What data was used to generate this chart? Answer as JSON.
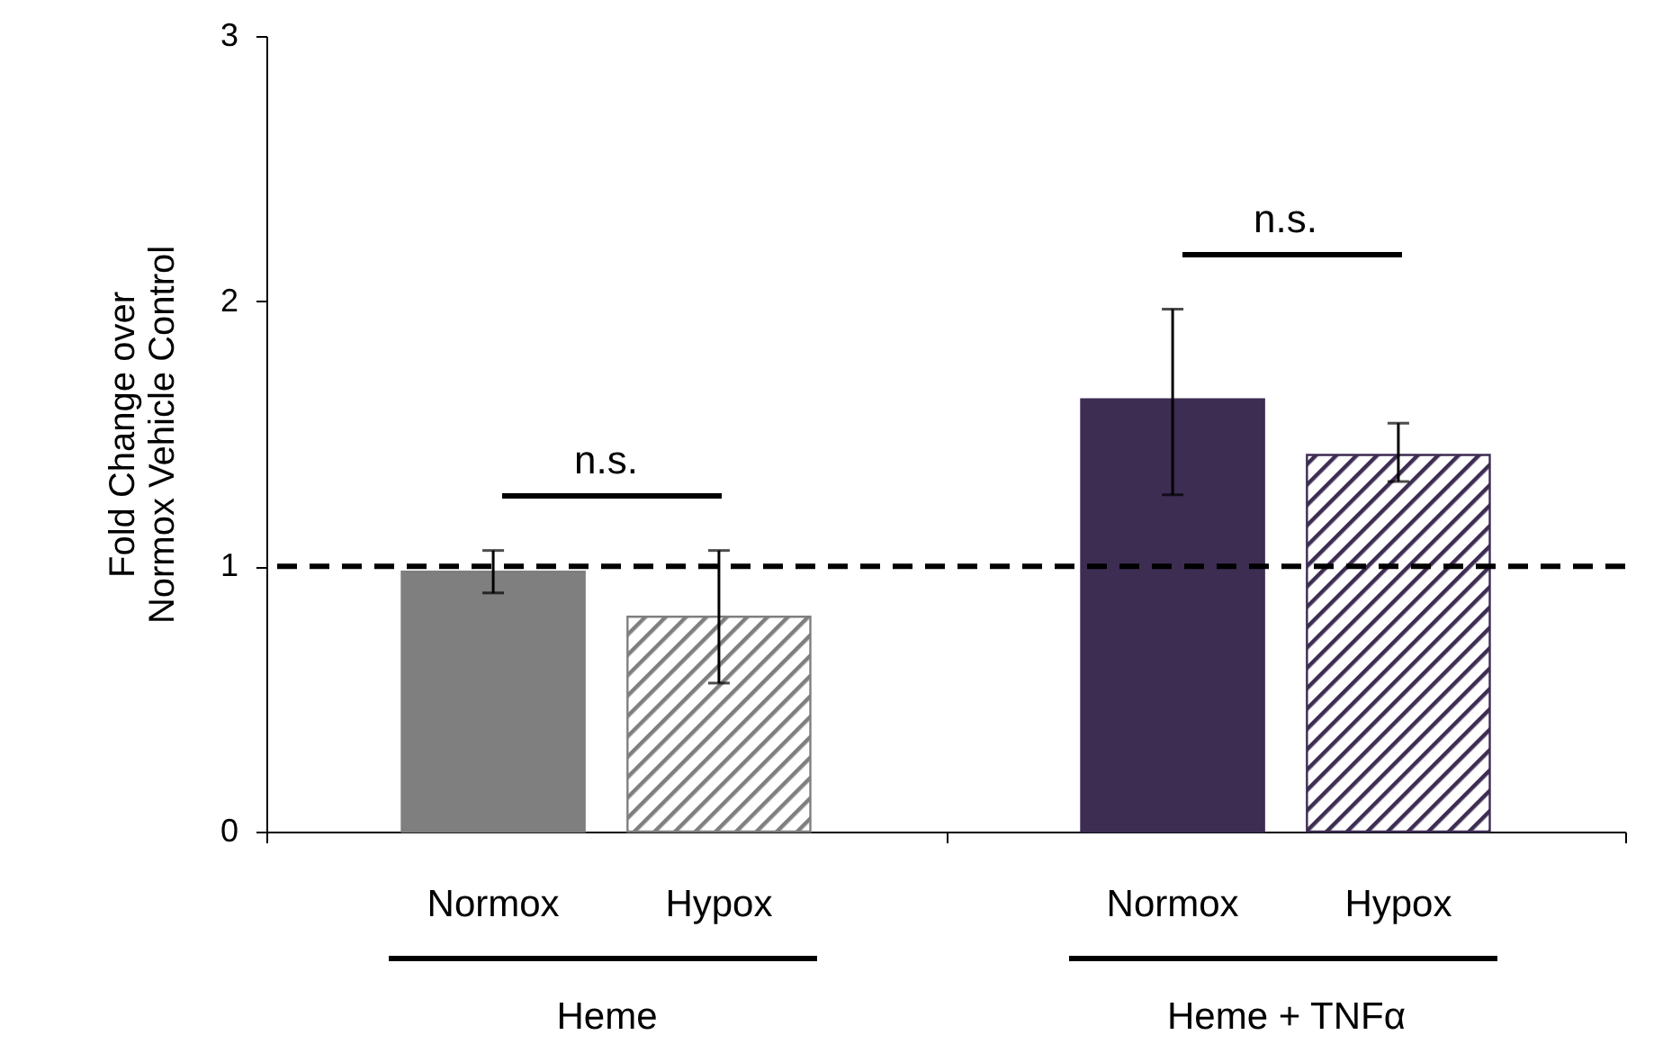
{
  "chart_data": {
    "type": "bar",
    "ylabel": "Fold Change over\nNormox Vehicle Control",
    "categories": [
      "Heme",
      "Heme + TNFα"
    ],
    "series": [
      {
        "name": "Normox",
        "colors": [
          "#7f7f7f",
          "#3d2d52"
        ],
        "values": [
          0.98,
          1.63
        ],
        "errors": [
          [
            0.9,
            1.06
          ],
          [
            1.27,
            1.97
          ]
        ]
      },
      {
        "name": "Hypox",
        "colors": [
          "#7f7f7f",
          "#3d2d52"
        ],
        "values": [
          0.81,
          1.42
        ],
        "errors": [
          [
            0.56,
            1.06
          ],
          [
            1.32,
            1.54
          ]
        ]
      }
    ],
    "ylim": [
      0,
      3
    ],
    "yticks": [
      0,
      1,
      2,
      3
    ],
    "grid": false,
    "ref_lines": [
      {
        "axis": "y",
        "value": 1,
        "color": "#000000",
        "line_style": "dashed"
      }
    ],
    "annotations": [
      "n.s.",
      "n.s."
    ]
  }
}
